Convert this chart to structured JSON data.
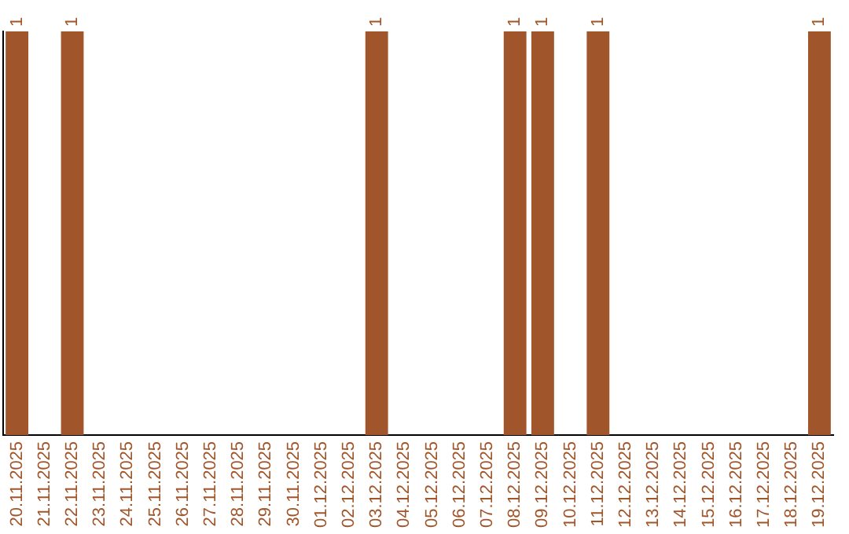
{
  "chart_data": {
    "type": "bar",
    "ylim": [
      0,
      1
    ],
    "tick_labels": "x",
    "grid": false,
    "legend": false,
    "categories": [
      "20.11.2025",
      "21.11.2025",
      "22.11.2025",
      "23.11.2025",
      "24.11.2025",
      "25.11.2025",
      "26.11.2025",
      "27.11.2025",
      "28.11.2025",
      "29.11.2025",
      "30.11.2025",
      "01.12.2025",
      "02.12.2025",
      "03.12.2025",
      "04.12.2025",
      "05.12.2025",
      "06.12.2025",
      "07.12.2025",
      "08.12.2025",
      "09.12.2025",
      "10.12.2025",
      "11.12.2025",
      "12.12.2025",
      "13.12.2025",
      "14.12.2025",
      "15.12.2025",
      "16.12.2025",
      "17.12.2025",
      "18.12.2025",
      "19.12.2025"
    ],
    "values": [
      1,
      0,
      1,
      0,
      0,
      0,
      0,
      0,
      0,
      0,
      0,
      0,
      0,
      1,
      0,
      0,
      0,
      0,
      1,
      1,
      0,
      1,
      0,
      0,
      0,
      0,
      0,
      0,
      0,
      1
    ],
    "value_labels": [
      "1",
      null,
      "1",
      null,
      null,
      null,
      null,
      null,
      null,
      null,
      null,
      null,
      null,
      "1",
      null,
      null,
      null,
      null,
      "1",
      "1",
      null,
      "1",
      null,
      null,
      null,
      null,
      null,
      null,
      null,
      "1"
    ],
    "color": "#a0562a"
  }
}
